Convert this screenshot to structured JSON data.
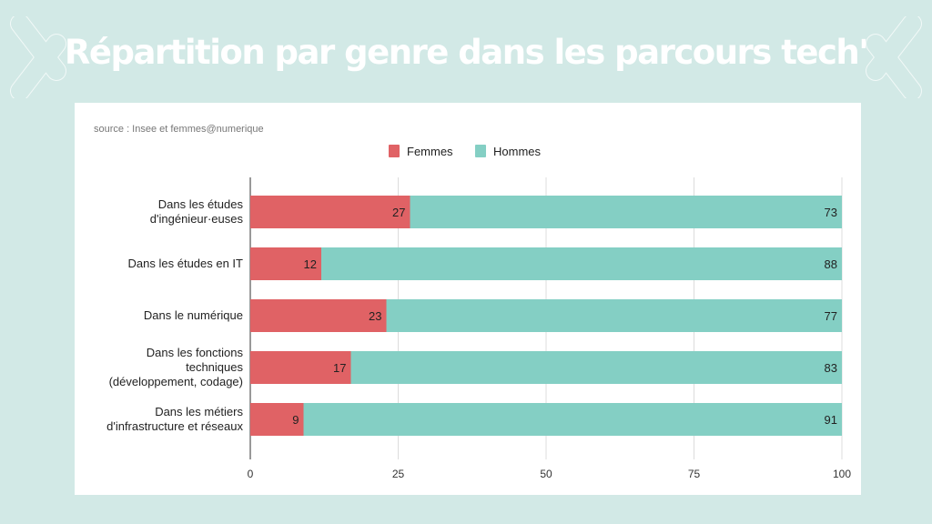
{
  "title": "Répartition par genre dans les parcours tech'",
  "source": "source : Insee et femmes@numerique",
  "colors": {
    "background": "#d2e9e6",
    "femmes": "#e06265",
    "hommes": "#84cfc4"
  },
  "chart_data": {
    "type": "bar",
    "orientation": "horizontal",
    "stacked": true,
    "categories": [
      [
        "Dans les études",
        "d'ingénieur·euses"
      ],
      [
        "Dans les études en IT"
      ],
      [
        "Dans le numérique"
      ],
      [
        "Dans les fonctions",
        "techniques",
        "(développement, codage)"
      ],
      [
        "Dans les métiers",
        "d'infrastructure et réseaux"
      ]
    ],
    "series": [
      {
        "name": "Femmes",
        "color": "#e06265",
        "values": [
          27,
          12,
          23,
          17,
          9
        ]
      },
      {
        "name": "Hommes",
        "color": "#84cfc4",
        "values": [
          73,
          88,
          77,
          83,
          91
        ]
      }
    ],
    "xlim": [
      0,
      100
    ],
    "xticks": [
      "0",
      "25",
      "50",
      "75",
      "100"
    ],
    "grid": true,
    "legend": "top",
    "data_labels": true
  }
}
